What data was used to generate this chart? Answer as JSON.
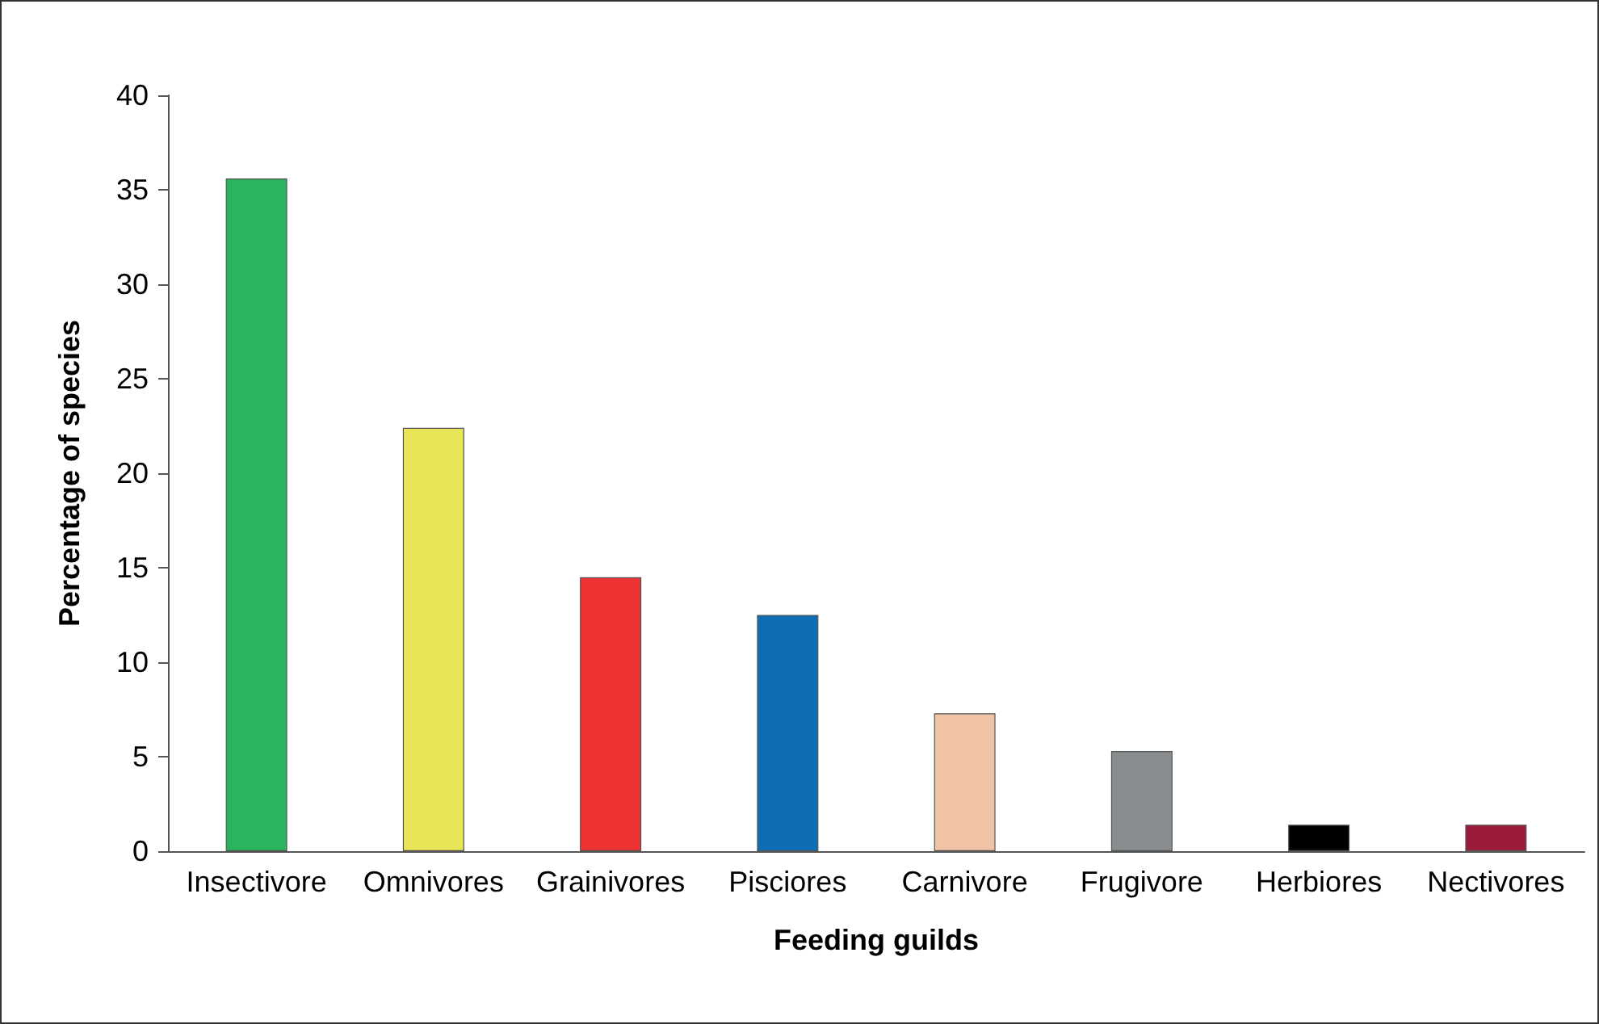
{
  "chart_data": {
    "type": "bar",
    "xlabel": "Feeding guilds",
    "ylabel": "Percentage of species",
    "categories": [
      "Insectivore",
      "Omnivores",
      "Grainivores",
      "Pisciores",
      "Carnivore",
      "Frugivore",
      "Herbiores",
      "Nectivores"
    ],
    "values": [
      35.6,
      22.4,
      14.5,
      12.5,
      7.3,
      5.3,
      1.4,
      1.4
    ],
    "colors": [
      "#2bb35d",
      "#e8e657",
      "#ee3334",
      "#0d6eb5",
      "#f0c3a4",
      "#8a8d8f",
      "#000000",
      "#9b1b3a"
    ],
    "ylim": [
      0,
      40
    ],
    "yticks": [
      0,
      5,
      10,
      15,
      20,
      25,
      30,
      35,
      40
    ]
  }
}
